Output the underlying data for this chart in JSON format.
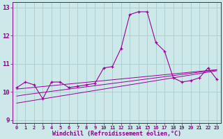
{
  "x": [
    0,
    1,
    2,
    3,
    4,
    5,
    6,
    7,
    8,
    9,
    10,
    11,
    12,
    13,
    14,
    15,
    16,
    17,
    18,
    19,
    20,
    21,
    22,
    23
  ],
  "y_main": [
    10.15,
    10.35,
    10.25,
    9.75,
    10.35,
    10.35,
    10.15,
    10.2,
    10.25,
    10.3,
    10.85,
    10.9,
    11.55,
    12.75,
    12.85,
    12.85,
    11.75,
    11.45,
    10.5,
    10.35,
    10.4,
    10.5,
    10.85,
    10.45
  ],
  "y_line1": [
    10.1,
    10.13,
    10.16,
    10.19,
    10.22,
    10.25,
    10.28,
    10.31,
    10.34,
    10.37,
    10.4,
    10.43,
    10.46,
    10.49,
    10.52,
    10.55,
    10.58,
    10.61,
    10.64,
    10.67,
    10.7,
    10.73,
    10.76,
    10.79
  ],
  "y_line2": [
    9.85,
    9.9,
    9.94,
    9.98,
    10.02,
    10.06,
    10.1,
    10.14,
    10.18,
    10.22,
    10.26,
    10.3,
    10.34,
    10.38,
    10.42,
    10.46,
    10.5,
    10.54,
    10.58,
    10.62,
    10.66,
    10.7,
    10.74,
    10.78
  ],
  "y_line3": [
    9.6,
    9.65,
    9.7,
    9.75,
    9.8,
    9.85,
    9.9,
    9.95,
    10.0,
    10.05,
    10.1,
    10.15,
    10.2,
    10.25,
    10.3,
    10.35,
    10.4,
    10.45,
    10.5,
    10.55,
    10.6,
    10.65,
    10.7,
    10.75
  ],
  "line_color": "#990099",
  "bg_color": "#cce8e8",
  "grid_color": "#aacccc",
  "text_color": "#880088",
  "ylim": [
    8.9,
    13.2
  ],
  "xlim": [
    -0.5,
    23.5
  ],
  "yticks": [
    9,
    10,
    11,
    12,
    13
  ],
  "xlabel": "Windchill (Refroidissement éolien,°C)"
}
